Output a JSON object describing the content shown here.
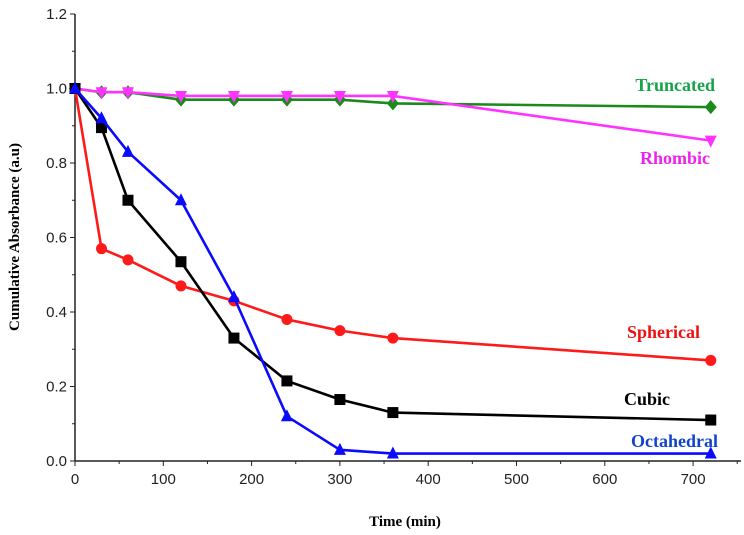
{
  "chart_data": {
    "type": "line",
    "title": "",
    "xlabel": "Time (min)",
    "ylabel": "Cumulative Absorbance (a.u)",
    "xlim": [
      0,
      750
    ],
    "ylim": [
      0,
      1.2
    ],
    "xticks": [
      0,
      100,
      200,
      300,
      400,
      500,
      600,
      700
    ],
    "yticks": [
      "0.0",
      "0.2",
      "0.4",
      "0.6",
      "0.8",
      "1.0",
      "1.2"
    ],
    "grid": false,
    "legend": "inline labels at right",
    "x": [
      0,
      30,
      60,
      120,
      180,
      240,
      300,
      360,
      720
    ],
    "series": [
      {
        "name": "Truncated",
        "color": "#1a8a1a",
        "label_color": "#17a34a",
        "marker": "diamond",
        "values": [
          1.0,
          0.99,
          0.99,
          0.97,
          0.97,
          0.97,
          0.97,
          0.96,
          0.95
        ]
      },
      {
        "name": "Rhombic",
        "color": "#ff33ff",
        "label_color": "#ee22ee",
        "marker": "triangle-down",
        "values": [
          1.0,
          0.99,
          0.99,
          0.98,
          0.98,
          0.98,
          0.98,
          0.98,
          0.86
        ]
      },
      {
        "name": "Spherical",
        "color": "#ff1a1a",
        "label_color": "#ee1111",
        "marker": "circle",
        "values": [
          1.0,
          0.57,
          0.54,
          0.47,
          0.43,
          0.38,
          0.35,
          0.33,
          0.27
        ]
      },
      {
        "name": "Cubic",
        "color": "#000000",
        "label_color": "#000000",
        "marker": "square",
        "values": [
          1.0,
          0.895,
          0.7,
          0.535,
          0.33,
          0.215,
          0.165,
          0.13,
          0.11
        ]
      },
      {
        "name": "Octahedral",
        "color": "#0a0aff",
        "label_color": "#1144cc",
        "marker": "triangle-up",
        "values": [
          1.0,
          0.92,
          0.83,
          0.7,
          0.44,
          0.12,
          0.03,
          0.02,
          0.02
        ]
      }
    ]
  }
}
